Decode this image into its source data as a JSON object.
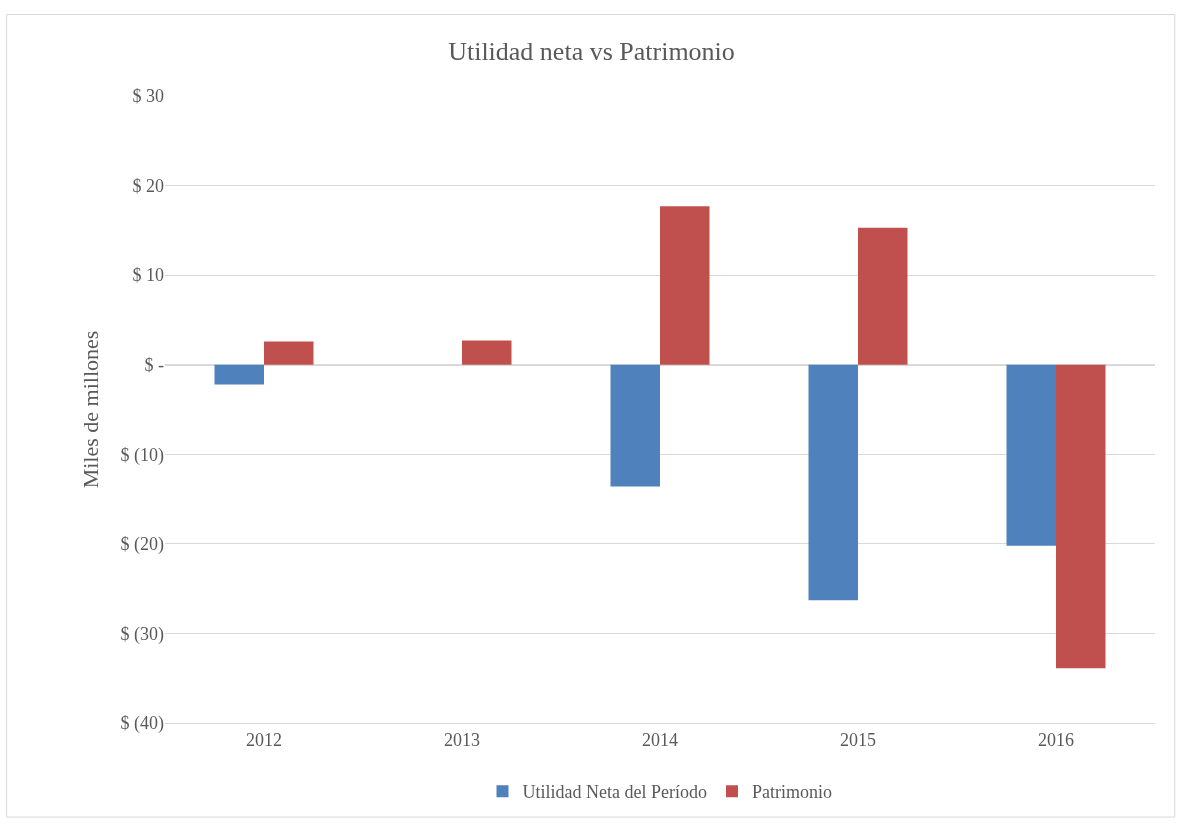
{
  "chart_data": {
    "type": "bar",
    "title": "Utilidad neta vs Patrimonio",
    "ylabel": "Miles de millones",
    "categories": [
      "2012",
      "2013",
      "2014",
      "2015",
      "2016"
    ],
    "series": [
      {
        "name": "Utilidad Neta del Período",
        "color": "#4f81bd",
        "values": [
          -2.2,
          null,
          -13.6,
          -26.3,
          -20.2
        ]
      },
      {
        "name": "Patrimonio",
        "color": "#c0504d",
        "values": [
          2.6,
          2.7,
          17.7,
          15.3,
          -33.9
        ]
      }
    ],
    "ylim": [
      -40,
      30
    ],
    "yticks": [
      {
        "value": -40,
        "label": "$ (40)"
      },
      {
        "value": -30,
        "label": "$ (30)"
      },
      {
        "value": -20,
        "label": "$ (20)"
      },
      {
        "value": -10,
        "label": "$ (10)"
      },
      {
        "value": 0,
        "label": "$ -"
      },
      {
        "value": 10,
        "label": "$ 10"
      },
      {
        "value": 20,
        "label": "$ 20"
      },
      {
        "value": 30,
        "label": "$ 30"
      }
    ],
    "grid": "y",
    "legend": "bottom"
  }
}
